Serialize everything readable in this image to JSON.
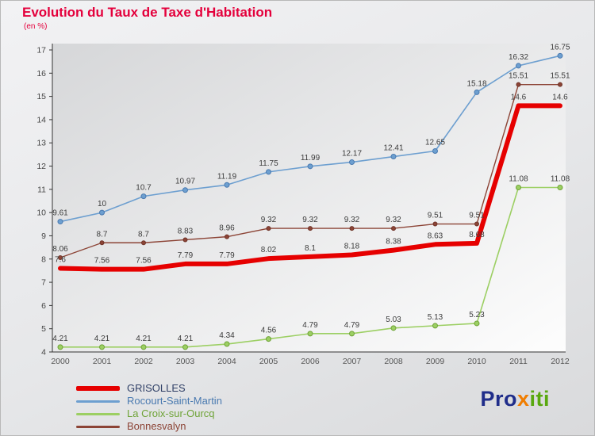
{
  "header": {
    "title": "Evolution du Taux de Taxe d'Habitation",
    "subtitle": "(en %)",
    "title_color": "#e4003c"
  },
  "chart_data": {
    "type": "line",
    "x": [
      2000,
      2001,
      2002,
      2003,
      2004,
      2005,
      2006,
      2007,
      2008,
      2009,
      2010,
      2011,
      2012
    ],
    "ylim": [
      4,
      17
    ],
    "y_tick_step": 1,
    "grid": false,
    "legend_position": "bottom-left",
    "value_labels": true,
    "axis_color": "#333333",
    "label_color": "#3c3c3c",
    "series": [
      {
        "name": "Rocourt-Saint-Martin",
        "color": "#6d9fd0",
        "marker_stroke": "#4a7ab0",
        "width": 1.6,
        "marker": true,
        "marker_r": 3,
        "values": [
          9.61,
          10,
          10.7,
          10.97,
          11.19,
          11.75,
          11.99,
          12.17,
          12.41,
          12.65,
          15.18,
          16.32,
          16.75
        ]
      },
      {
        "name": "La Croix-sur-Ourcq",
        "color": "#9ccf63",
        "marker_stroke": "#6fa337",
        "width": 1.6,
        "marker": true,
        "marker_r": 3,
        "values": [
          4.21,
          4.21,
          4.21,
          4.21,
          4.34,
          4.56,
          4.79,
          4.79,
          5.03,
          5.13,
          5.23,
          11.08,
          11.08
        ]
      },
      {
        "name": "Bonnesvalyn",
        "color": "#8c4436",
        "marker_stroke": "#6e3328",
        "width": 1.4,
        "marker": true,
        "marker_r": 2.5,
        "values": [
          8.06,
          8.7,
          8.7,
          8.83,
          8.96,
          9.32,
          9.32,
          9.32,
          9.32,
          9.51,
          9.51,
          15.51,
          15.51
        ]
      },
      {
        "name": "GRISOLLES",
        "color": "#e60000",
        "marker_stroke": "#e60000",
        "width": 6,
        "marker": false,
        "marker_r": 0,
        "values": [
          7.6,
          7.56,
          7.56,
          7.79,
          7.79,
          8.02,
          8.1,
          8.18,
          8.38,
          8.63,
          8.68,
          14.6,
          14.6
        ]
      }
    ]
  },
  "legend": {
    "items": [
      {
        "label": "GRISOLLES",
        "line_color": "#e60000",
        "text_color": "#2f3f66",
        "thickness": 6
      },
      {
        "label": "Rocourt-Saint-Martin",
        "line_color": "#6d9fd0",
        "text_color": "#4a7ab0",
        "thickness": 3
      },
      {
        "label": "La Croix-sur-Ourcq",
        "line_color": "#9ccf63",
        "text_color": "#6fa337",
        "thickness": 3
      },
      {
        "label": "Bonnesvalyn",
        "line_color": "#8c4436",
        "text_color": "#8c4436",
        "thickness": 3
      }
    ]
  },
  "logo": {
    "parts": [
      {
        "text": "Pro",
        "color": "#1f2d8a"
      },
      {
        "text": "x",
        "color": "#f07d00"
      },
      {
        "text": "iti",
        "color": "#59a80f"
      }
    ]
  }
}
